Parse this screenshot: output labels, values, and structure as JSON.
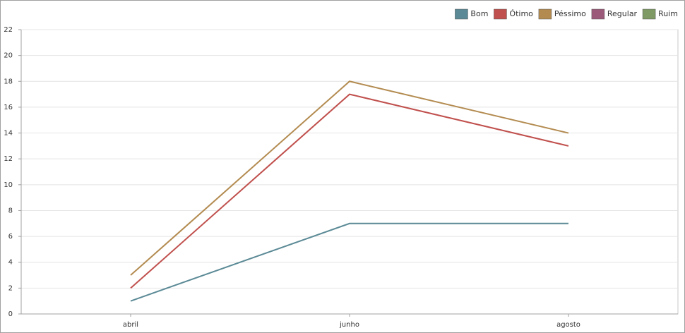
{
  "chart_data": {
    "type": "line",
    "categories": [
      "abril",
      "junho",
      "agosto"
    ],
    "series": [
      {
        "name": "Bom",
        "color": "#5b8a96",
        "values": [
          1,
          7,
          7
        ]
      },
      {
        "name": "Ótimo",
        "color": "#c0504d",
        "values": [
          2,
          17,
          13
        ]
      },
      {
        "name": "Péssimo",
        "color": "#b38b50",
        "values": [
          3,
          18,
          14
        ]
      },
      {
        "name": "Regular",
        "color": "#9b5a7a",
        "values": [
          null,
          null,
          null
        ]
      },
      {
        "name": "Ruim",
        "color": "#7f9a65",
        "values": [
          null,
          null,
          null
        ]
      }
    ],
    "ylim": [
      0,
      22
    ],
    "yticks": [
      0,
      2,
      4,
      6,
      8,
      10,
      12,
      14,
      16,
      18,
      20,
      22
    ],
    "grid": true,
    "legend": "top-right"
  }
}
